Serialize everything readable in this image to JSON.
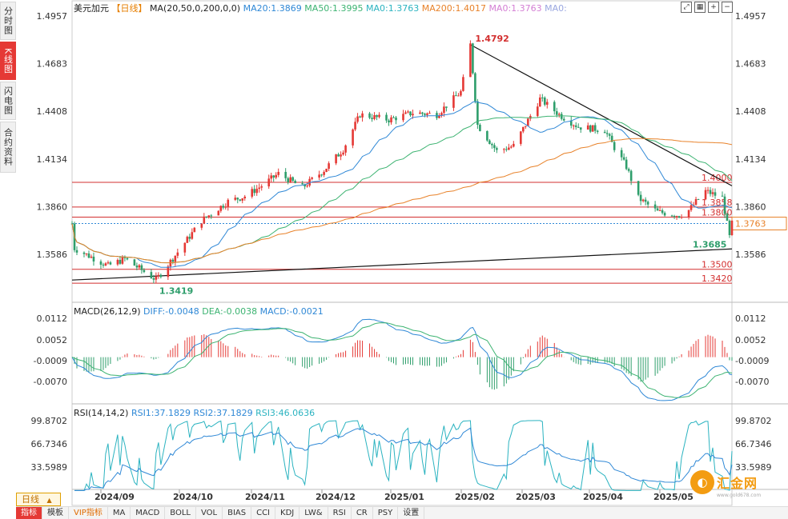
{
  "side_tabs": [
    {
      "label": "分时图",
      "active": false
    },
    {
      "label": "K线图",
      "active": true
    },
    {
      "label": "闪电图",
      "active": false
    },
    {
      "label": "合约资料",
      "active": false
    }
  ],
  "header": {
    "symbol": "美元加元",
    "period_tag": "【日线】",
    "ma_label": "MA(20,50,0,200,0,0)",
    "ma_values": [
      {
        "text": "MA20:1.3869",
        "color": "#2f88d6"
      },
      {
        "text": "MA50:1.3995",
        "color": "#3cb371"
      },
      {
        "text": "MA0:1.3763",
        "color": "#2bb3c0"
      },
      {
        "text": "MA200:1.4017",
        "color": "#e8822a"
      },
      {
        "text": "MA0:1.3763",
        "color": "#d47fd4"
      },
      {
        "text": "MA0:",
        "color": "#9aa7e0"
      }
    ]
  },
  "price_axis": {
    "ticks": [
      "1.4957",
      "1.4683",
      "1.4408",
      "1.4134",
      "1.3860",
      "1.3586"
    ],
    "current_price": "1.3763"
  },
  "annotations": {
    "high": "1.4792",
    "low": "1.3419",
    "recent_low": "1.3685"
  },
  "levels": [
    {
      "label": "1.4000",
      "value": 1.4
    },
    {
      "label": "1.3858",
      "value": 1.3858
    },
    {
      "label": "1.3800",
      "value": 1.38
    },
    {
      "label": "1.3500",
      "value": 1.35
    },
    {
      "label": "1.3420",
      "value": 1.342
    }
  ],
  "macd": {
    "label": "MACD(26,12,9)",
    "diff": "DIFF:-0.0048",
    "dea": "DEA:-0.0038",
    "macd": "MACD:-0.0021",
    "ticks": [
      "0.0112",
      "0.0052",
      "-0.0009",
      "-0.0070"
    ]
  },
  "rsi": {
    "label": "RSI(14,14,2)",
    "rsi1": "RSI1:37.1829",
    "rsi2": "RSI2:37.1829",
    "rsi3": "RSI3:46.0636",
    "ticks": [
      "99.8702",
      "66.7346",
      "33.5989"
    ]
  },
  "x_axis": {
    "labels": [
      "2024/09",
      "2024/10",
      "2024/11",
      "2024/12",
      "2025/01",
      "2025/02",
      "2025/03",
      "2025/04",
      "2025/05"
    ]
  },
  "period_select": "日线",
  "bottom_tabs": [
    {
      "label": "指标",
      "active": true,
      "vip": false
    },
    {
      "label": "模板",
      "active": false,
      "vip": false
    },
    {
      "label": "VIP指标",
      "active": false,
      "vip": true
    },
    {
      "label": "MA",
      "active": false,
      "vip": false
    },
    {
      "label": "MACD",
      "active": false,
      "vip": false
    },
    {
      "label": "BOLL",
      "active": false,
      "vip": false
    },
    {
      "label": "VOL",
      "active": false,
      "vip": false
    },
    {
      "label": "BIAS",
      "active": false,
      "vip": false
    },
    {
      "label": "CCI",
      "active": false,
      "vip": false
    },
    {
      "label": "KDJ",
      "active": false,
      "vip": false
    },
    {
      "label": "LW&",
      "active": false,
      "vip": false
    },
    {
      "label": "RSI",
      "active": false,
      "vip": false
    },
    {
      "label": "CR",
      "active": false,
      "vip": false
    },
    {
      "label": "PSY",
      "active": false,
      "vip": false
    },
    {
      "label": "设置",
      "active": false,
      "vip": false
    }
  ],
  "logo": {
    "text": "汇金网",
    "url": "www.gold678.com"
  },
  "colors": {
    "up": "#e53935",
    "down": "#2e9e6b",
    "level": "#d32f2f",
    "ma20": "#2f88d6",
    "ma50": "#3cb371",
    "ma200": "#e8822a"
  },
  "chart_data": {
    "type": "candlestick",
    "title": "美元加元",
    "period": "daily",
    "x_range": [
      "2024-08-21",
      "2025-05-23"
    ],
    "ylim": [
      1.3419,
      1.4957
    ],
    "price_path": [
      [
        "2024-08-22",
        1.362
      ],
      [
        "2024-09-05",
        1.352
      ],
      [
        "2024-09-12",
        1.356
      ],
      [
        "2024-09-25",
        1.344
      ],
      [
        "2024-10-03",
        1.358
      ],
      [
        "2024-10-14",
        1.378
      ],
      [
        "2024-10-25",
        1.389
      ],
      [
        "2024-11-01",
        1.392
      ],
      [
        "2024-11-08",
        1.398
      ],
      [
        "2024-11-15",
        1.405
      ],
      [
        "2024-11-25",
        1.397
      ],
      [
        "2024-12-04",
        1.407
      ],
      [
        "2024-12-12",
        1.419
      ],
      [
        "2024-12-19",
        1.439
      ],
      [
        "2024-12-31",
        1.436
      ],
      [
        "2025-01-10",
        1.44
      ],
      [
        "2025-01-20",
        1.439
      ],
      [
        "2025-01-30",
        1.452
      ],
      [
        "2025-02-03",
        1.4792
      ],
      [
        "2025-02-06",
        1.433
      ],
      [
        "2025-02-14",
        1.418
      ],
      [
        "2025-02-21",
        1.421
      ],
      [
        "2025-03-04",
        1.448
      ],
      [
        "2025-03-12",
        1.439
      ],
      [
        "2025-03-20",
        1.432
      ],
      [
        "2025-03-31",
        1.43
      ],
      [
        "2025-04-04",
        1.42
      ],
      [
        "2025-04-09",
        1.409
      ],
      [
        "2025-04-14",
        1.391
      ],
      [
        "2025-04-22",
        1.383
      ],
      [
        "2025-05-01",
        1.381
      ],
      [
        "2025-05-05",
        1.384
      ],
      [
        "2025-05-12",
        1.395
      ],
      [
        "2025-05-19",
        1.391
      ],
      [
        "2025-05-22",
        1.3685
      ],
      [
        "2025-05-23",
        1.3763
      ]
    ],
    "moving_averages": {
      "MA20": 1.3869,
      "MA50": 1.3995,
      "MA200": 1.4017
    },
    "horizontal_levels": [
      1.4,
      1.3858,
      1.38,
      1.35,
      1.342
    ],
    "trendlines": [
      {
        "from": [
          "2025-02-03",
          1.4792
        ],
        "to": [
          "2025-05-23",
          1.398
        ]
      },
      {
        "from": [
          "2024-08-21",
          1.3438
        ],
        "to": [
          "2025-05-23",
          1.3617
        ]
      }
    ],
    "annotations": [
      {
        "date": "2025-02-03",
        "value": 1.4792
      },
      {
        "date": "2024-09-25",
        "value": 1.3419
      },
      {
        "date": "2025-05-22",
        "value": 1.3685
      }
    ],
    "macd": {
      "DIFF": -0.0048,
      "DEA": -0.0038,
      "MACD": -0.0021,
      "ylim": [
        -0.0098,
        0.0124
      ]
    },
    "rsi": {
      "RSI1": 37.1829,
      "RSI2": 37.1829,
      "RSI3": 46.0636,
      "ylim": [
        0,
        100
      ]
    }
  }
}
